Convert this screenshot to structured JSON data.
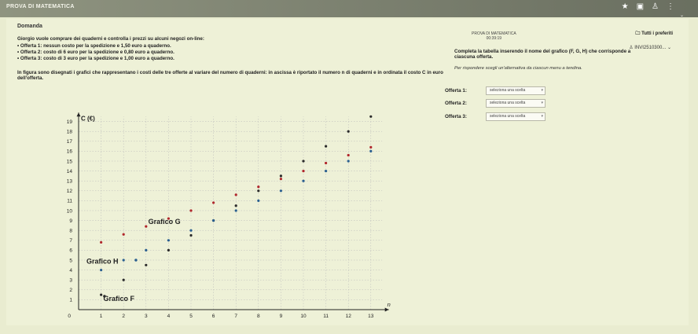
{
  "app": {
    "title": "PROVA DI MATEMATICA"
  },
  "timer": {
    "label": "PROVA DI MATEMATICA",
    "time": "00:39:19"
  },
  "favorites": "Tutti i preferiti",
  "user_code": "INVI2510300...",
  "question": {
    "heading": "Domanda",
    "intro": "Giorgio vuole comprare dei quaderni e controlla i prezzi su alcuni negozi on-line:",
    "offers": [
      "• Offerta 1: nessun costo per la spedizione e 1,50 euro a quaderno.",
      "• Offerta 2: costo di 6 euro per la spedizione e 0,80 euro a quaderno.",
      "• Offerta 3: costo di 3 euro per la spedizione e 1,00 euro a quaderno."
    ],
    "description": "In figura sono disegnati i grafici che rappresentano i costi delle tre offerte al variare del numero di quaderni: in ascissa è riportato il numero n di quaderni e in ordinata il costo C in euro dell'offerta."
  },
  "task": {
    "instruction": "Completa la tabella inserendo il nome del grafico (F, G, H) che corrisponde a ciascuna offerta.",
    "note": "Per rispondere scegli un'alternativa da ciascun menu a tendina.",
    "rows": [
      {
        "label": "Offerta 1:",
        "value": "seleziona una scelta"
      },
      {
        "label": "Offerta 2:",
        "value": "seleziona una scelta"
      },
      {
        "label": "Offerta 3:",
        "value": "seleziona una scelta"
      }
    ]
  },
  "colors": {
    "series_F": "#2a2a2a",
    "series_G": "#b0262c",
    "series_H": "#2a5f8f"
  },
  "chart_data": {
    "type": "scatter",
    "xlabel": "n",
    "ylabel": "C (€)",
    "x_ticks": [
      1,
      2,
      3,
      4,
      5,
      6,
      7,
      8,
      9,
      10,
      11,
      12,
      13
    ],
    "y_ticks": [
      1,
      2,
      3,
      4,
      5,
      6,
      7,
      8,
      9,
      10,
      11,
      12,
      13,
      14,
      15,
      16,
      17,
      18,
      19
    ],
    "xlim": [
      0,
      13
    ],
    "ylim": [
      0,
      19
    ],
    "origin_label": "0",
    "grid": true,
    "series": [
      {
        "name": "Grafico F",
        "color": "#2a2a2a",
        "x": [
          1,
          2,
          3,
          4,
          5,
          6,
          7,
          8,
          9,
          10,
          11,
          12,
          13
        ],
        "y": [
          1.5,
          3,
          4.5,
          6,
          7.5,
          9,
          10.5,
          12,
          13.5,
          15,
          16.5,
          18,
          19.5
        ]
      },
      {
        "name": "Grafico G",
        "color": "#b0262c",
        "x": [
          1,
          2,
          3,
          4,
          5,
          6,
          7,
          8,
          9,
          10,
          11,
          12,
          13
        ],
        "y": [
          6.8,
          7.6,
          8.4,
          9.2,
          10,
          10.8,
          11.6,
          12.4,
          13.2,
          14,
          14.8,
          15.6,
          16.4
        ]
      },
      {
        "name": "Grafico H",
        "color": "#2a5f8f",
        "x": [
          1,
          2,
          3,
          4,
          5,
          6,
          7,
          8,
          9,
          10,
          11,
          12,
          13
        ],
        "y": [
          4,
          5,
          6,
          7,
          8,
          9,
          10,
          11,
          12,
          13,
          14,
          15,
          16
        ]
      }
    ]
  }
}
